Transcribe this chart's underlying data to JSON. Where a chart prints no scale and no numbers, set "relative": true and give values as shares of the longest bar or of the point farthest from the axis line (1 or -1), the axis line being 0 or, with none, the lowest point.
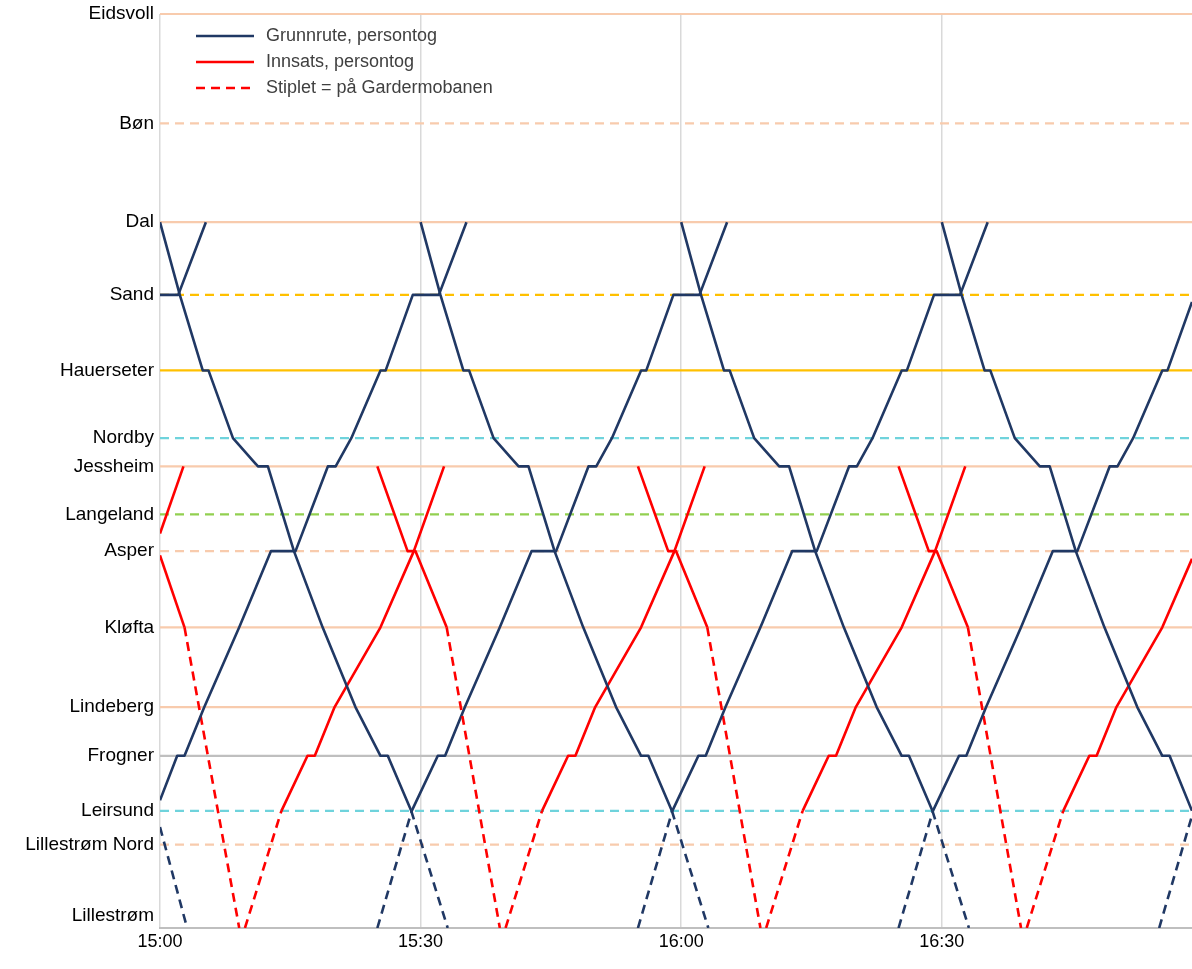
{
  "chart_data": {
    "type": "line",
    "relative": true,
    "xlim": [
      15,
      16.98
    ],
    "xticks": [
      {
        "value": 15,
        "label": "15:00"
      },
      {
        "value": 15.5,
        "label": "15:30"
      },
      {
        "value": 16,
        "label": "16:00"
      },
      {
        "value": 16.5,
        "label": "16:30"
      }
    ],
    "grid": "x",
    "legend": "top left",
    "marker": "none",
    "ref_lines": [
      {
        "axis": "y",
        "value": 1.295,
        "label": "Eidsvoll",
        "color": "#f8cbad",
        "line_style": "solid"
      },
      {
        "axis": "y",
        "value": 1.14,
        "label": "Bøn",
        "color": "#f8cbad",
        "line_style": "dashed"
      },
      {
        "axis": "y",
        "value": 1,
        "label": "Dal",
        "color": "#f8cbad",
        "line_style": "solid"
      },
      {
        "axis": "y",
        "value": 0.897,
        "label": "Sand",
        "color": "#ffc000",
        "line_style": "dashed"
      },
      {
        "axis": "y",
        "value": 0.79,
        "label": "Hauerseter",
        "color": "#ffc000",
        "line_style": "solid"
      },
      {
        "axis": "y",
        "value": 0.694,
        "label": "Nordby",
        "color": "#6fd3dc",
        "line_style": "dashed"
      },
      {
        "axis": "y",
        "value": 0.654,
        "label": "Jessheim",
        "color": "#f8cbad",
        "line_style": "solid"
      },
      {
        "axis": "y",
        "value": 0.586,
        "label": "Langeland",
        "color": "#92d050",
        "line_style": "dashed"
      },
      {
        "axis": "y",
        "value": 0.534,
        "label": "Asper",
        "color": "#f8cbad",
        "line_style": "dashed"
      },
      {
        "axis": "y",
        "value": 0.426,
        "label": "Kløfta",
        "color": "#f8cbad",
        "line_style": "solid"
      },
      {
        "axis": "y",
        "value": 0.313,
        "label": "Lindeberg",
        "color": "#f8cbad",
        "line_style": "solid"
      },
      {
        "axis": "y",
        "value": 0.244,
        "label": "Frogner",
        "color": "#bfbfbf",
        "line_style": "solid"
      },
      {
        "axis": "y",
        "value": 0.166,
        "label": "Leirsund",
        "color": "#6fd3dc",
        "line_style": "dashed"
      },
      {
        "axis": "y",
        "value": 0.118,
        "label": "Lillestrøm Nord",
        "color": "#f8cbad",
        "line_style": "dashed"
      }
    ],
    "annotations": [
      "Lillestrøm"
    ],
    "series": [
      {
        "name": "Grunnrute, persontog",
        "color": "#203864",
        "line_style": "solid",
        "x": [
          15.0,
          15.038,
          15.082,
          15.093,
          15.14,
          15.188,
          15.207,
          15.257,
          15.312,
          15.375,
          15.423,
          15.437,
          15.482
        ],
        "values": [
          1,
          0.897,
          0.79,
          0.79,
          0.694,
          0.654,
          0.654,
          0.534,
          0.426,
          0.313,
          0.244,
          0.244,
          0.166
        ]
      },
      {
        "name": "Innsats, persontog",
        "color": "#ff0000",
        "line_style": "solid",
        "x": [
          15.233,
          15.283,
          15.297,
          15.335,
          15.423,
          15.487,
          15.545
        ],
        "values": [
          0.166,
          0.244,
          0.244,
          0.313,
          0.426,
          0.534,
          0.654
        ]
      },
      {
        "name": "Stiplet = på Gardermobanen",
        "color": "#ff0000",
        "line_style": "dashed",
        "x": [
          15.55,
          15.652
        ],
        "values": [
          0.426,
          0
        ]
      },
      {
        "color": "#203864",
        "line_style": "dashed",
        "x": [
          15.482,
          15.552
        ],
        "values": [
          0.166,
          0
        ]
      },
      {
        "color": "#203864",
        "line_style": "solid",
        "x": [
          15.5,
          15.538,
          15.582,
          15.593,
          15.64,
          15.688,
          15.707,
          15.757,
          15.812,
          15.875,
          15.923,
          15.937,
          15.982
        ],
        "values": [
          1,
          0.897,
          0.79,
          0.79,
          0.694,
          0.654,
          0.654,
          0.534,
          0.426,
          0.313,
          0.244,
          0.244,
          0.166
        ]
      },
      {
        "color": "#203864",
        "line_style": "dashed",
        "x": [
          15.982,
          16.052
        ],
        "values": [
          0.166,
          0
        ]
      },
      {
        "color": "#203864",
        "line_style": "solid",
        "x": [
          16.0,
          16.038,
          16.082,
          16.093,
          16.14,
          16.188,
          16.207,
          16.257,
          16.312,
          16.375,
          16.423,
          16.437,
          16.482
        ],
        "values": [
          1,
          0.897,
          0.79,
          0.79,
          0.694,
          0.654,
          0.654,
          0.534,
          0.426,
          0.313,
          0.244,
          0.244,
          0.166
        ]
      },
      {
        "color": "#203864",
        "line_style": "dashed",
        "x": [
          16.482,
          16.552
        ],
        "values": [
          0.166,
          0
        ]
      },
      {
        "color": "#203864",
        "line_style": "solid",
        "x": [
          16.5,
          16.538,
          16.582,
          16.593,
          16.64,
          16.688,
          16.707,
          16.757,
          16.812,
          16.875,
          16.923,
          16.937,
          16.98
        ],
        "values": [
          1,
          0.897,
          0.79,
          0.79,
          0.694,
          0.654,
          0.654,
          0.534,
          0.426,
          0.313,
          0.244,
          0.244,
          0.166
        ]
      },
      {
        "color": "#203864",
        "line_style": "dashed",
        "x": [
          15.0,
          15.052
        ],
        "values": [
          0.143,
          0
        ]
      },
      {
        "color": "#203864",
        "line_style": "solid",
        "x": [
          15.0,
          15.035,
          15.088
        ],
        "values": [
          0.897,
          0.897,
          1
        ]
      },
      {
        "color": "#203864",
        "line_style": "solid",
        "x": [
          15.0,
          15.033,
          15.047,
          15.085,
          15.152,
          15.213,
          15.26,
          15.322,
          15.337,
          15.367,
          15.423,
          15.433,
          15.485,
          15.535,
          15.588
        ],
        "values": [
          0.181,
          0.244,
          0.244,
          0.313,
          0.426,
          0.534,
          0.534,
          0.654,
          0.654,
          0.694,
          0.79,
          0.79,
          0.897,
          0.897,
          1
        ]
      },
      {
        "color": "#203864",
        "line_style": "dashed",
        "x": [
          15.417,
          15.483
        ],
        "values": [
          0,
          0.166
        ]
      },
      {
        "color": "#203864",
        "line_style": "solid",
        "x": [
          15.483,
          15.533,
          15.547,
          15.585,
          15.652,
          15.713,
          15.76,
          15.822,
          15.837,
          15.867,
          15.923,
          15.933,
          15.985,
          16.035,
          16.088
        ],
        "values": [
          0.166,
          0.244,
          0.244,
          0.313,
          0.426,
          0.534,
          0.534,
          0.654,
          0.654,
          0.694,
          0.79,
          0.79,
          0.897,
          0.897,
          1
        ]
      },
      {
        "color": "#203864",
        "line_style": "dashed",
        "x": [
          15.917,
          15.983
        ],
        "values": [
          0,
          0.166
        ]
      },
      {
        "color": "#203864",
        "line_style": "solid",
        "x": [
          15.983,
          16.033,
          16.047,
          16.085,
          16.152,
          16.213,
          16.26,
          16.322,
          16.337,
          16.367,
          16.423,
          16.433,
          16.485,
          16.535,
          16.588
        ],
        "values": [
          0.166,
          0.244,
          0.244,
          0.313,
          0.426,
          0.534,
          0.534,
          0.654,
          0.654,
          0.694,
          0.79,
          0.79,
          0.897,
          0.897,
          1
        ]
      },
      {
        "color": "#203864",
        "line_style": "dashed",
        "x": [
          16.417,
          16.483
        ],
        "values": [
          0,
          0.166
        ]
      },
      {
        "color": "#203864",
        "line_style": "solid",
        "x": [
          16.483,
          16.533,
          16.547,
          16.585,
          16.652,
          16.713,
          16.76,
          16.822,
          16.837,
          16.867,
          16.923,
          16.933,
          16.98
        ],
        "values": [
          0.166,
          0.244,
          0.244,
          0.313,
          0.426,
          0.534,
          0.534,
          0.654,
          0.654,
          0.694,
          0.79,
          0.79,
          0.887
        ]
      },
      {
        "color": "#203864",
        "line_style": "dashed",
        "x": [
          16.917,
          16.98
        ],
        "values": [
          0,
          0.159
        ]
      },
      {
        "color": "#ff0000",
        "line_style": "solid",
        "x": [
          15.0,
          15.047
        ],
        "values": [
          0.528,
          0.426
        ]
      },
      {
        "color": "#ff0000",
        "line_style": "dashed",
        "x": [
          15.047,
          15.152
        ],
        "values": [
          0.426,
          0
        ]
      },
      {
        "color": "#ff0000",
        "line_style": "solid",
        "x": [
          15.417,
          15.475,
          15.49,
          15.55
        ],
        "values": [
          0.654,
          0.534,
          0.534,
          0.426
        ]
      },
      {
        "color": "#ff0000",
        "line_style": "solid",
        "x": [
          15.917,
          15.975,
          15.99,
          16.05
        ],
        "values": [
          0.654,
          0.534,
          0.534,
          0.426
        ]
      },
      {
        "color": "#ff0000",
        "line_style": "dashed",
        "x": [
          16.05,
          16.152
        ],
        "values": [
          0.426,
          0
        ]
      },
      {
        "color": "#ff0000",
        "line_style": "solid",
        "x": [
          16.417,
          16.475,
          16.49,
          16.55
        ],
        "values": [
          0.654,
          0.534,
          0.534,
          0.426
        ]
      },
      {
        "color": "#ff0000",
        "line_style": "dashed",
        "x": [
          16.55,
          16.652
        ],
        "values": [
          0.426,
          0
        ]
      },
      {
        "color": "#ff0000",
        "line_style": "solid",
        "x": [
          15.0,
          15.045
        ],
        "values": [
          0.559,
          0.654
        ]
      },
      {
        "color": "#ff0000",
        "line_style": "dashed",
        "x": [
          15.163,
          15.233
        ],
        "values": [
          0,
          0.166
        ]
      },
      {
        "color": "#ff0000",
        "line_style": "dashed",
        "x": [
          15.663,
          15.733
        ],
        "values": [
          0,
          0.166
        ]
      },
      {
        "color": "#ff0000",
        "line_style": "solid",
        "x": [
          15.733,
          15.783,
          15.797,
          15.835,
          15.923,
          15.987,
          16.045
        ],
        "values": [
          0.166,
          0.244,
          0.244,
          0.313,
          0.426,
          0.534,
          0.654
        ]
      },
      {
        "color": "#ff0000",
        "line_style": "dashed",
        "x": [
          16.163,
          16.233
        ],
        "values": [
          0,
          0.166
        ]
      },
      {
        "color": "#ff0000",
        "line_style": "solid",
        "x": [
          16.233,
          16.283,
          16.297,
          16.335,
          16.423,
          16.487,
          16.545
        ],
        "values": [
          0.166,
          0.244,
          0.244,
          0.313,
          0.426,
          0.534,
          0.654
        ]
      },
      {
        "color": "#ff0000",
        "line_style": "dashed",
        "x": [
          16.663,
          16.733
        ],
        "values": [
          0,
          0.166
        ]
      },
      {
        "color": "#ff0000",
        "line_style": "solid",
        "x": [
          16.733,
          16.783,
          16.797,
          16.835,
          16.923,
          16.98
        ],
        "values": [
          0.166,
          0.244,
          0.244,
          0.313,
          0.426,
          0.523
        ]
      }
    ]
  }
}
